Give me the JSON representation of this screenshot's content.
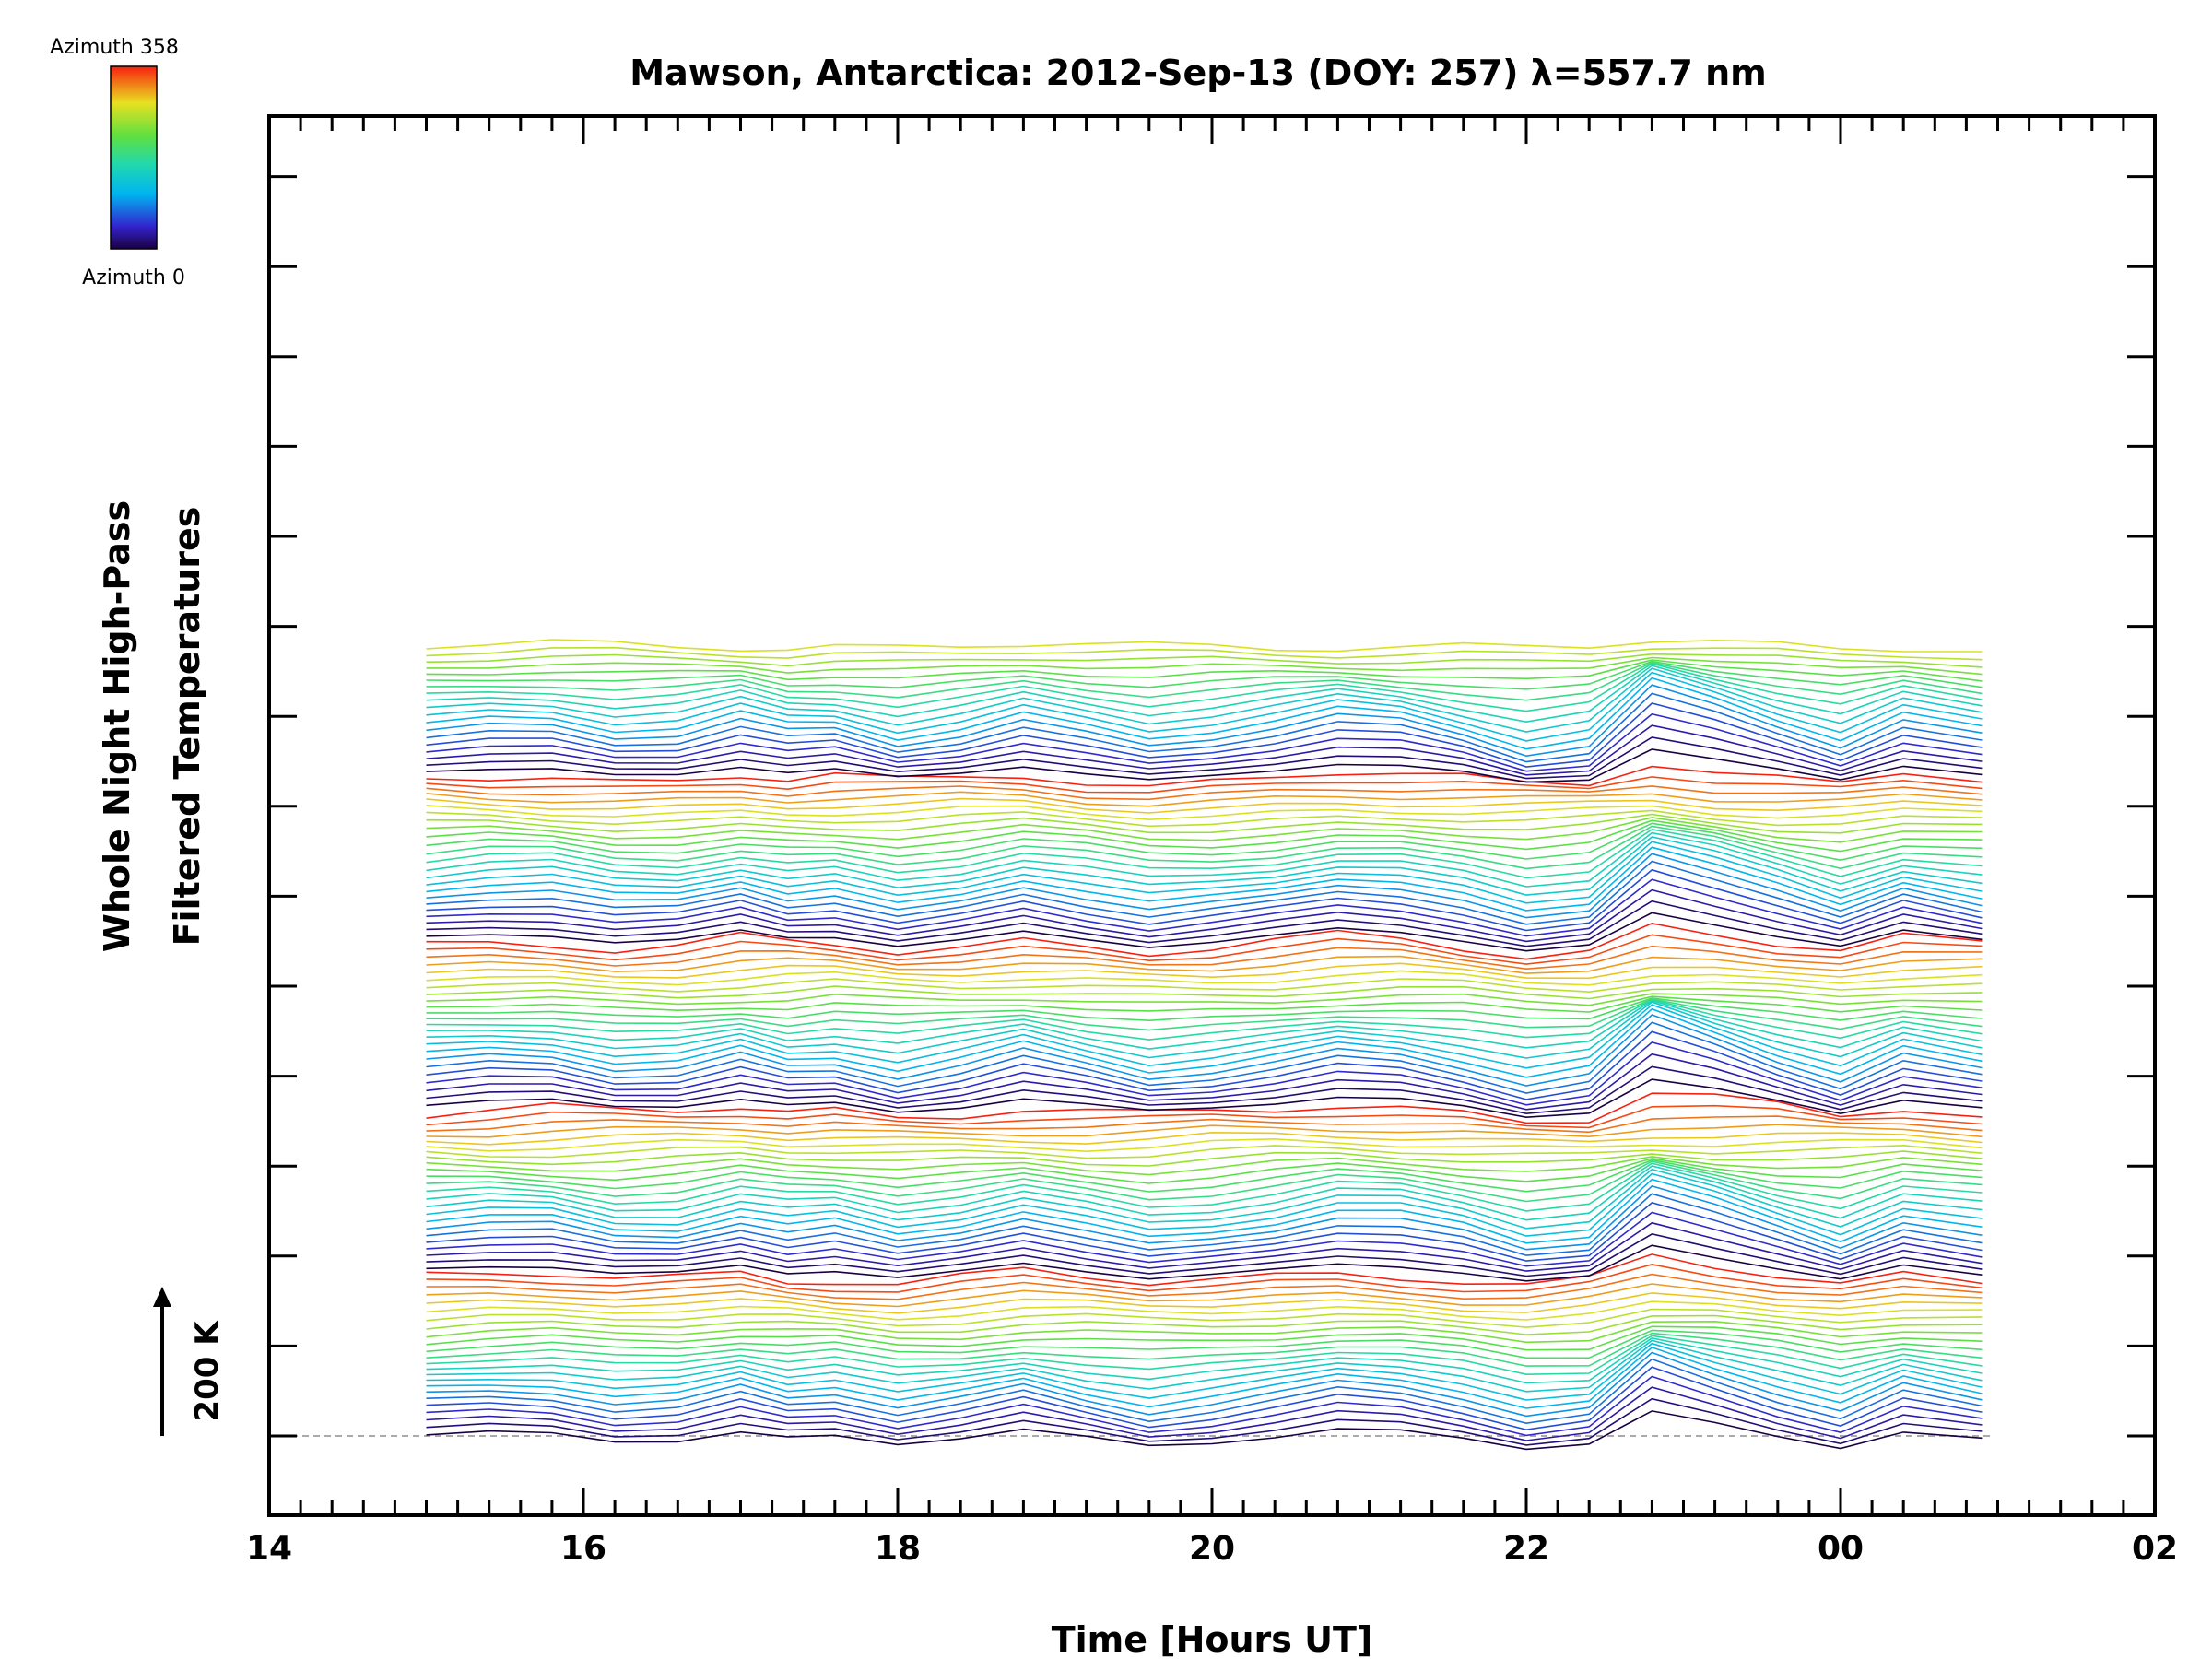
{
  "chart_data": {
    "type": "line",
    "title": "Mawson, Antarctica: 2012-Sep-13 (DOY: 257) λ=557.7 nm",
    "xlabel": "Time [Hours UT]",
    "ylabel_line1": "Whole Night High-Pass",
    "ylabel_line2": "Filtered Temperatures",
    "x_ticks": [
      "14",
      "16",
      "18",
      "20",
      "22",
      "00",
      "02"
    ],
    "x_tick_hours": [
      14,
      16,
      18,
      20,
      22,
      24,
      26
    ],
    "xlim": [
      14,
      26
    ],
    "data_range": [
      15.0,
      24.9
    ],
    "scale_bar": {
      "label": "200 K",
      "value_K": 200
    },
    "colorbar": {
      "top_label": "Azimuth 358",
      "bottom_label": "Azimuth 0",
      "min": 0,
      "max": 358,
      "colormap": "rainbow"
    },
    "azimuth_bins": 24,
    "zones": 115,
    "grid": false,
    "baseline": "dashed-gray",
    "sample_series": [
      {
        "x": [
          15.0,
          15.4,
          15.8,
          16.2,
          16.6,
          17.0,
          17.3,
          17.6,
          18.0,
          18.4,
          18.8,
          19.2,
          19.6,
          20.0,
          20.4,
          20.8,
          21.2,
          21.6,
          22.0,
          22.4,
          22.8,
          23.2,
          23.6,
          24.0,
          24.4,
          24.9
        ],
        "y": [
          0,
          6,
          5,
          -10,
          -8,
          10,
          -4,
          0,
          -18,
          -6,
          12,
          -4,
          -20,
          -12,
          0,
          15,
          10,
          -6,
          -28,
          -18,
          52,
          28,
          2,
          -22,
          10,
          -8
        ]
      }
    ]
  }
}
